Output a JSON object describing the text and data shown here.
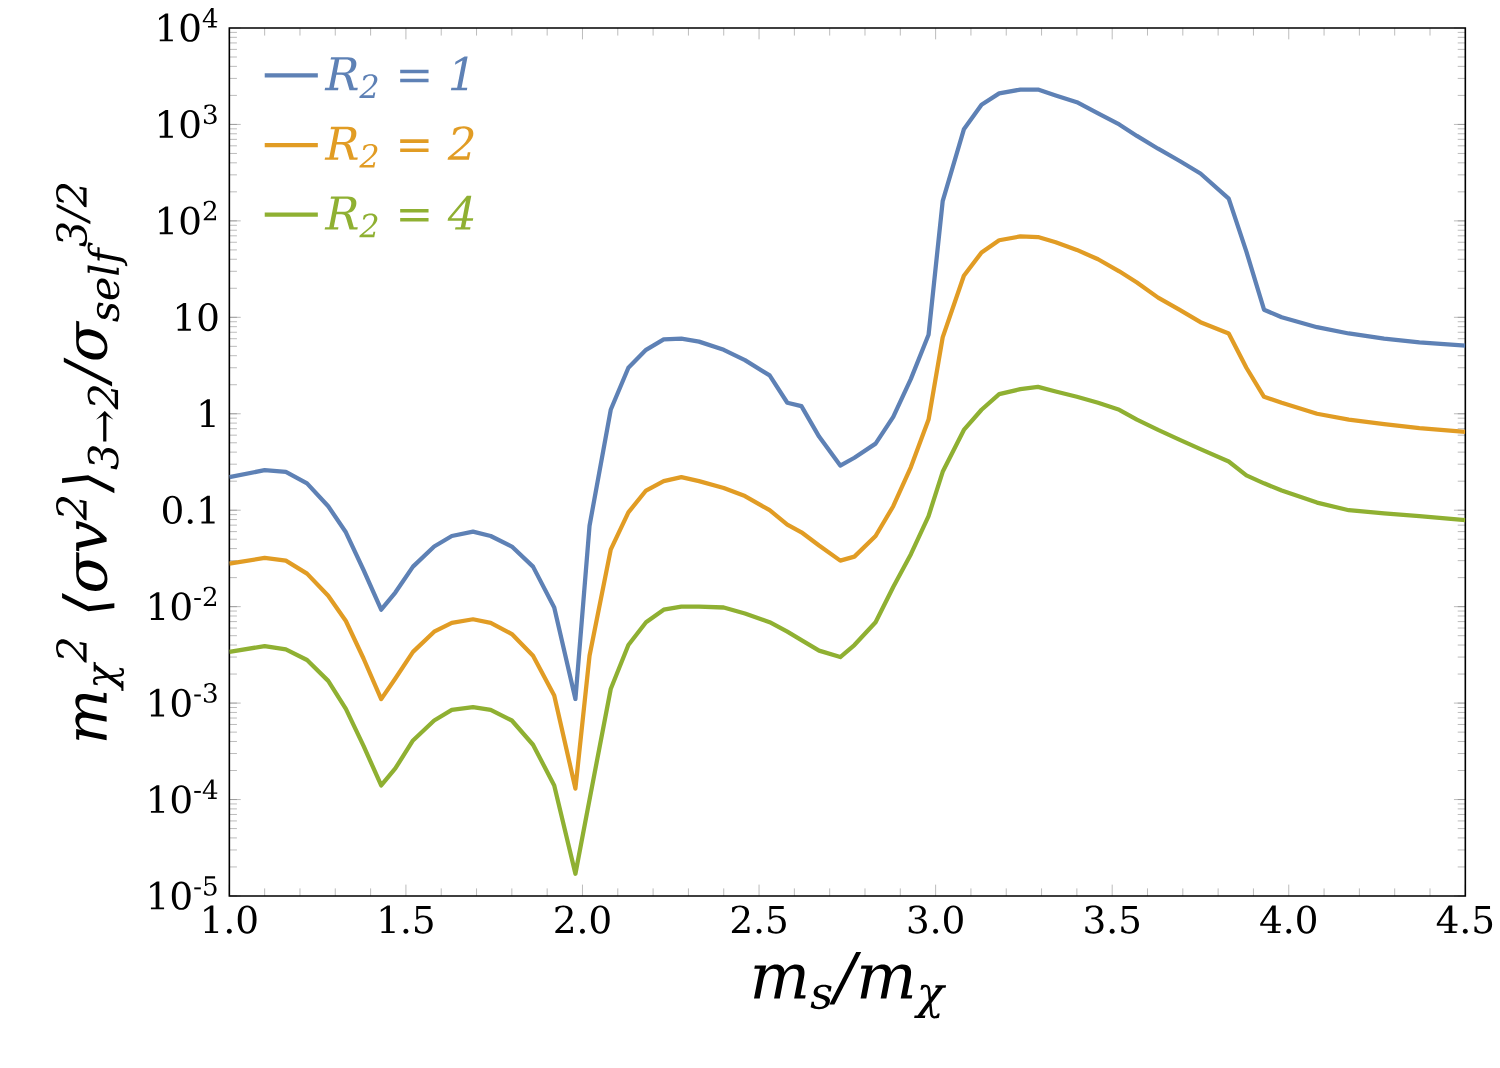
{
  "chart_data": {
    "type": "line",
    "xlabel": "m$_{s}$/m$_{χ}$",
    "ylabel": "m$_{χ}$$^{2}$ ⟨σv$^{2}$⟩$_{3→2}$/σ$_{self}$$^{3/2}$",
    "log": "y",
    "legend": "top left",
    "xlim": [
      1.0,
      4.5
    ],
    "ylim": [
      1e-05,
      10000
    ],
    "xticks": [
      {
        "value": 1,
        "label": "1.0"
      },
      1.5,
      {
        "value": 2,
        "label": "2.0"
      },
      2.5,
      {
        "value": 3,
        "label": "3.0"
      },
      3.5,
      {
        "value": 4,
        "label": "4.0"
      },
      4.5
    ],
    "yticks": [
      {
        "value": 1e-05,
        "label": "10$^{-5}$"
      },
      {
        "value": 0.0001,
        "label": "10$^{-4}$"
      },
      {
        "value": 0.001,
        "label": "10$^{-3}$"
      },
      {
        "value": 0.01,
        "label": "10$^{-2}$"
      },
      0.1,
      1,
      10,
      {
        "value": 100,
        "label": "10$^{2}$"
      },
      {
        "value": 1000,
        "label": "10$^{3}$"
      },
      {
        "value": 10000,
        "label": "10$^{4}$"
      }
    ],
    "x": [
      1.0,
      1.1,
      1.16,
      1.22,
      1.28,
      1.33,
      1.38,
      1.43,
      1.47,
      1.52,
      1.58,
      1.63,
      1.69,
      1.74,
      1.8,
      1.86,
      1.92,
      1.98,
      2.02,
      2.08,
      2.13,
      2.18,
      2.23,
      2.28,
      2.33,
      2.4,
      2.46,
      2.53,
      2.58,
      2.62,
      2.67,
      2.73,
      2.77,
      2.83,
      2.88,
      2.93,
      2.98,
      3.02,
      3.08,
      3.13,
      3.18,
      3.24,
      3.29,
      3.34,
      3.4,
      3.46,
      3.52,
      3.57,
      3.63,
      3.69,
      3.75,
      3.83,
      3.88,
      3.93,
      3.98,
      4.08,
      4.17,
      4.27,
      4.37,
      4.5
    ],
    "series": [
      {
        "name": "R$_{2}$ = 1",
        "color": "#5e81b5",
        "values": [
          0.22,
          0.26,
          0.25,
          0.19,
          0.11,
          0.059,
          0.024,
          0.0093,
          0.014,
          0.026,
          0.042,
          0.054,
          0.06,
          0.054,
          0.042,
          0.026,
          0.0098,
          0.0011,
          0.069,
          1.1,
          3.0,
          4.6,
          5.9,
          6.0,
          5.6,
          4.6,
          3.6,
          2.5,
          1.3,
          1.2,
          0.58,
          0.29,
          0.35,
          0.49,
          0.93,
          2.3,
          6.6,
          160,
          890,
          1600,
          2100,
          2300,
          2300,
          2000,
          1700,
          1300,
          1000,
          760,
          560,
          420,
          310,
          170,
          48,
          12,
          10,
          7.9,
          6.8,
          6.0,
          5.5,
          5.1
        ]
      },
      {
        "name": "R$_{2}$ = 2",
        "color": "#e19c24",
        "values": [
          0.028,
          0.032,
          0.03,
          0.022,
          0.013,
          0.0071,
          0.0029,
          0.0011,
          0.0018,
          0.0034,
          0.0055,
          0.0068,
          0.0074,
          0.0068,
          0.0052,
          0.0031,
          0.0012,
          0.00013,
          0.0031,
          0.039,
          0.095,
          0.16,
          0.2,
          0.22,
          0.2,
          0.17,
          0.14,
          0.1,
          0.071,
          0.059,
          0.043,
          0.03,
          0.033,
          0.054,
          0.11,
          0.28,
          0.87,
          6.2,
          27,
          47,
          63,
          69,
          68,
          60,
          50,
          40,
          30,
          23,
          16,
          12,
          8.9,
          6.8,
          3.0,
          1.5,
          1.3,
          1.0,
          0.87,
          0.78,
          0.71,
          0.65
        ]
      },
      {
        "name": "R$_{2}$ = 4",
        "color": "#8fb032",
        "values": [
          0.0034,
          0.0039,
          0.0036,
          0.0028,
          0.0017,
          0.00087,
          0.00036,
          0.00014,
          0.00021,
          0.00041,
          0.00066,
          0.00085,
          0.00091,
          0.00085,
          0.00066,
          0.00037,
          0.00014,
          1.7e-05,
          0.0001,
          0.0014,
          0.004,
          0.0069,
          0.0093,
          0.01,
          0.01,
          0.0098,
          0.0085,
          0.0069,
          0.0055,
          0.0045,
          0.0035,
          0.003,
          0.004,
          0.0069,
          0.016,
          0.035,
          0.087,
          0.25,
          0.68,
          1.1,
          1.6,
          1.8,
          1.9,
          1.7,
          1.5,
          1.3,
          1.1,
          0.87,
          0.68,
          0.54,
          0.43,
          0.32,
          0.23,
          0.19,
          0.16,
          0.12,
          0.1,
          0.093,
          0.087,
          0.079
        ]
      }
    ]
  }
}
